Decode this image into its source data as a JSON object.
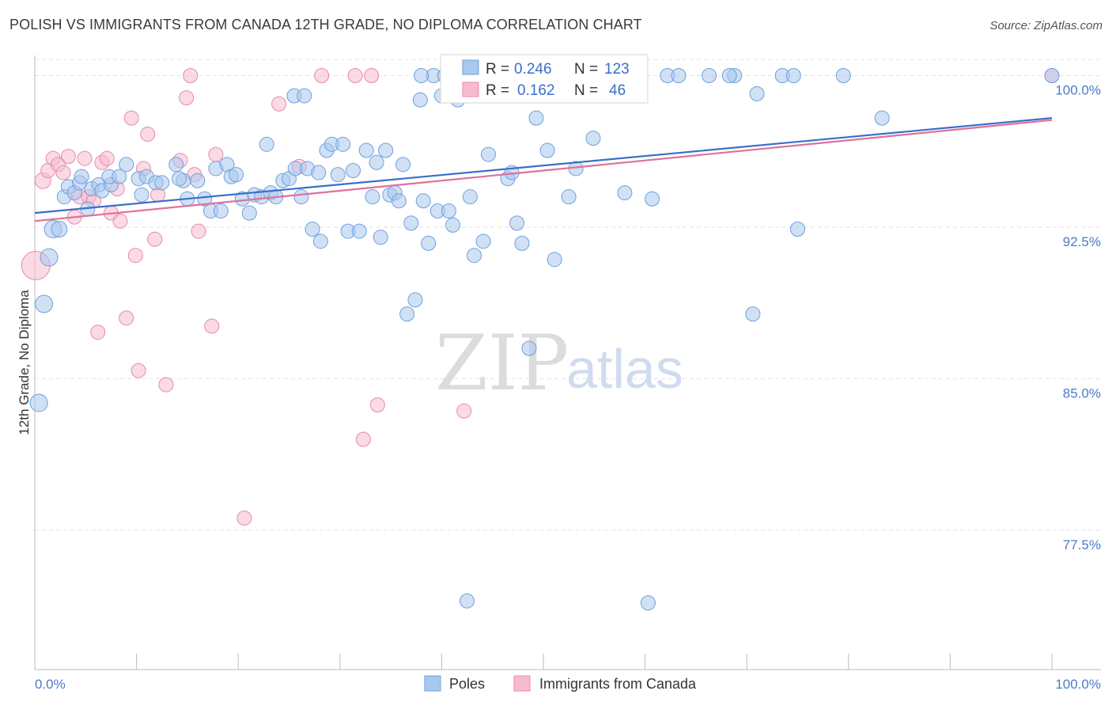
{
  "header": {
    "title": "POLISH VS IMMIGRANTS FROM CANADA 12TH GRADE, NO DIPLOMA CORRELATION CHART",
    "source": "Source: ZipAtlas.com"
  },
  "watermark": {
    "zip": "ZIP",
    "atlas": "atlas"
  },
  "legend_top": {
    "rows": [
      {
        "r_label": "R =",
        "r_value": "0.246",
        "n_label": "N =",
        "n_value": "123"
      },
      {
        "r_label": "R =",
        "r_value": "0.162",
        "n_label": "N =",
        "n_value": "46"
      }
    ]
  },
  "legend_bottom": {
    "items": [
      "Poles",
      "Immigrants from Canada"
    ]
  },
  "colors": {
    "poles_fill": "#a9c8ee",
    "poles_stroke": "#6f9fdc",
    "poles_line": "#3a6fc9",
    "canada_fill": "#f6bccd",
    "canada_stroke": "#e88aa8",
    "canada_line": "#e0709a",
    "tick_text": "#4a7bc8",
    "grid": "#e2e2e2"
  },
  "chart_data": {
    "type": "scatter",
    "title": "POLISH VS IMMIGRANTS FROM CANADA 12TH GRADE, NO DIPLOMA CORRELATION CHART",
    "xlabel": "",
    "ylabel": "12th Grade, No Diploma",
    "xlim": [
      0,
      100
    ],
    "ylim": [
      70.6,
      101.0
    ],
    "x_tick_labels": [
      "0.0%",
      "100.0%"
    ],
    "y_ticks": [
      77.5,
      85.0,
      92.5,
      100.0
    ],
    "y_tick_labels": [
      "77.5%",
      "85.0%",
      "92.5%",
      "100.0%"
    ],
    "grid": "horizontal dashed",
    "legend_placement": "top-center",
    "series": [
      {
        "name": "Poles",
        "R": 0.246,
        "N": 123,
        "trend": {
          "x": [
            0,
            100
          ],
          "y": [
            93.2,
            97.9
          ]
        },
        "points": [
          [
            0.4,
            83.8,
            11
          ],
          [
            0.9,
            88.7,
            11
          ],
          [
            1.4,
            91.0,
            11
          ],
          [
            1.8,
            92.4,
            11
          ],
          [
            2.4,
            92.4,
            10
          ],
          [
            2.9,
            94.0,
            9
          ],
          [
            3.3,
            94.5,
            9
          ],
          [
            3.9,
            94.2,
            9
          ],
          [
            4.4,
            94.7,
            9
          ],
          [
            4.6,
            95.0,
            9
          ],
          [
            5.2,
            93.4,
            9
          ],
          [
            5.6,
            94.4,
            9
          ],
          [
            6.3,
            94.6,
            9
          ],
          [
            6.6,
            94.3,
            9
          ],
          [
            7.5,
            94.6,
            9
          ],
          [
            7.3,
            95.0,
            9
          ],
          [
            8.3,
            95.0,
            9
          ],
          [
            9.0,
            95.6,
            9
          ],
          [
            10.2,
            94.9,
            9
          ],
          [
            10.5,
            94.1,
            9
          ],
          [
            11.0,
            95.0,
            9
          ],
          [
            11.9,
            94.7,
            9
          ],
          [
            12.5,
            94.7,
            9
          ],
          [
            14.6,
            94.8,
            9
          ],
          [
            13.9,
            95.6,
            9
          ],
          [
            14.2,
            94.9,
            9
          ],
          [
            15.0,
            93.9,
            9
          ],
          [
            16.0,
            94.8,
            9
          ],
          [
            16.7,
            93.9,
            9
          ],
          [
            17.3,
            93.3,
            9
          ],
          [
            17.8,
            95.4,
            9
          ],
          [
            18.3,
            93.3,
            9
          ],
          [
            18.9,
            95.6,
            9
          ],
          [
            19.3,
            95.0,
            9
          ],
          [
            19.8,
            95.1,
            9
          ],
          [
            20.4,
            93.9,
            9
          ],
          [
            21.1,
            93.2,
            9
          ],
          [
            21.6,
            94.1,
            9
          ],
          [
            22.3,
            94.0,
            9
          ],
          [
            22.8,
            96.6,
            9
          ],
          [
            23.2,
            94.2,
            9
          ],
          [
            23.7,
            94.0,
            9
          ],
          [
            24.4,
            94.8,
            9
          ],
          [
            25.0,
            94.9,
            9
          ],
          [
            25.6,
            95.4,
            9
          ],
          [
            26.2,
            94.0,
            9
          ],
          [
            26.8,
            95.4,
            9
          ],
          [
            27.3,
            92.4,
            9
          ],
          [
            28.1,
            91.8,
            9
          ],
          [
            27.9,
            95.2,
            9
          ],
          [
            28.7,
            96.3,
            9
          ],
          [
            29.2,
            96.6,
            9
          ],
          [
            29.8,
            95.1,
            9
          ],
          [
            30.3,
            96.6,
            9
          ],
          [
            30.8,
            92.3,
            9
          ],
          [
            31.3,
            95.3,
            9
          ],
          [
            31.9,
            92.3,
            9
          ],
          [
            32.6,
            96.3,
            9
          ],
          [
            33.2,
            94.0,
            9
          ],
          [
            33.6,
            95.7,
            9
          ],
          [
            34.0,
            92.0,
            9
          ],
          [
            34.5,
            96.3,
            9
          ],
          [
            34.9,
            94.1,
            9
          ],
          [
            35.4,
            94.2,
            9
          ],
          [
            35.8,
            93.8,
            9
          ],
          [
            36.2,
            95.6,
            9
          ],
          [
            36.6,
            88.2,
            9
          ],
          [
            37.0,
            92.7,
            9
          ],
          [
            37.4,
            88.9,
            9
          ],
          [
            37.9,
            98.8,
            9
          ],
          [
            38.2,
            93.8,
            9
          ],
          [
            38.7,
            91.7,
            9
          ],
          [
            39.2,
            100.0,
            9
          ],
          [
            39.6,
            93.3,
            9
          ],
          [
            40.3,
            100.0,
            9
          ],
          [
            40.7,
            93.3,
            9
          ],
          [
            41.1,
            92.6,
            9
          ],
          [
            41.6,
            98.8,
            9
          ],
          [
            42.2,
            100.0,
            9
          ],
          [
            42.8,
            94.0,
            9
          ],
          [
            43.2,
            91.1,
            9
          ],
          [
            44.1,
            91.8,
            9
          ],
          [
            44.6,
            96.1,
            9
          ],
          [
            45.1,
            100.0,
            9
          ],
          [
            46.0,
            99.0,
            9
          ],
          [
            46.5,
            94.9,
            9
          ],
          [
            46.9,
            95.2,
            9
          ],
          [
            47.4,
            92.7,
            9
          ],
          [
            47.9,
            91.7,
            9
          ],
          [
            48.6,
            86.5,
            9
          ],
          [
            49.3,
            97.9,
            9
          ],
          [
            50.0,
            100.0,
            9
          ],
          [
            50.4,
            96.3,
            9
          ],
          [
            51.1,
            90.9,
            9
          ],
          [
            52.0,
            100.0,
            9
          ],
          [
            52.5,
            94.0,
            9
          ],
          [
            53.2,
            95.4,
            9
          ],
          [
            54.1,
            100.0,
            9
          ],
          [
            54.9,
            96.9,
            9
          ],
          [
            56.8,
            100.0,
            9
          ],
          [
            58.0,
            94.2,
            9
          ],
          [
            60.3,
            73.9,
            9
          ],
          [
            60.7,
            93.9,
            9
          ],
          [
            62.2,
            100.0,
            9
          ],
          [
            63.3,
            100.0,
            9
          ],
          [
            66.3,
            100.0,
            9
          ],
          [
            68.8,
            100.0,
            9
          ],
          [
            68.3,
            100.0,
            9
          ],
          [
            71.0,
            99.1,
            9
          ],
          [
            70.6,
            88.2,
            9
          ],
          [
            73.5,
            100.0,
            9
          ],
          [
            74.6,
            100.0,
            9
          ],
          [
            75.0,
            92.4,
            9
          ],
          [
            79.5,
            100.0,
            9
          ],
          [
            83.3,
            97.9,
            9
          ],
          [
            100.0,
            100.0,
            9
          ],
          [
            42.5,
            74.0,
            9
          ],
          [
            38.0,
            100.0,
            9
          ],
          [
            40.0,
            99.0,
            9
          ],
          [
            44.0,
            100.0,
            9
          ],
          [
            25.5,
            99.0,
            9
          ],
          [
            26.5,
            99.0,
            9
          ],
          [
            55.5,
            100.0,
            9
          ]
        ]
      },
      {
        "name": "Immigrants from Canada",
        "R": 0.162,
        "N": 46,
        "trend": {
          "x": [
            0,
            100
          ],
          "y": [
            92.8,
            97.8
          ]
        },
        "points": [
          [
            0.1,
            90.6,
            18
          ],
          [
            0.8,
            94.8,
            10
          ],
          [
            1.3,
            95.3,
            9
          ],
          [
            1.8,
            95.9,
            9
          ],
          [
            2.3,
            95.6,
            9
          ],
          [
            2.8,
            95.2,
            9
          ],
          [
            3.3,
            96.0,
            9
          ],
          [
            3.9,
            93.0,
            9
          ],
          [
            4.4,
            94.0,
            9
          ],
          [
            4.9,
            95.9,
            9
          ],
          [
            5.3,
            94.0,
            9
          ],
          [
            5.8,
            93.8,
            9
          ],
          [
            6.2,
            87.3,
            9
          ],
          [
            6.6,
            95.7,
            9
          ],
          [
            7.1,
            95.9,
            9
          ],
          [
            7.5,
            93.2,
            9
          ],
          [
            8.1,
            94.4,
            9
          ],
          [
            8.4,
            92.8,
            9
          ],
          [
            9.0,
            88.0,
            9
          ],
          [
            9.5,
            97.9,
            9
          ],
          [
            9.9,
            91.1,
            9
          ],
          [
            10.2,
            85.4,
            9
          ],
          [
            10.7,
            95.4,
            9
          ],
          [
            11.1,
            97.1,
            9
          ],
          [
            11.8,
            91.9,
            9
          ],
          [
            12.1,
            94.1,
            9
          ],
          [
            12.9,
            84.7,
            9
          ],
          [
            14.3,
            95.8,
            9
          ],
          [
            14.9,
            98.9,
            9
          ],
          [
            15.3,
            100.0,
            9
          ],
          [
            15.7,
            95.1,
            9
          ],
          [
            16.1,
            92.3,
            9
          ],
          [
            17.4,
            87.6,
            9
          ],
          [
            17.8,
            96.1,
            9
          ],
          [
            20.6,
            78.1,
            9
          ],
          [
            24.0,
            98.6,
            9
          ],
          [
            26.0,
            95.5,
            9
          ],
          [
            28.2,
            100.0,
            9
          ],
          [
            31.5,
            100.0,
            9
          ],
          [
            32.3,
            82.0,
            9
          ],
          [
            33.1,
            100.0,
            9
          ],
          [
            33.7,
            83.7,
            9
          ],
          [
            41.0,
            100.0,
            9
          ],
          [
            42.2,
            83.4,
            9
          ],
          [
            45.6,
            100.0,
            9
          ],
          [
            100.0,
            100.0,
            9
          ]
        ]
      }
    ]
  }
}
